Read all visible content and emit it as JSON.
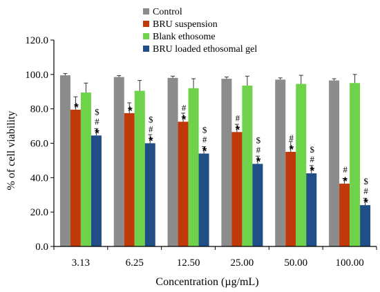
{
  "chart_data": {
    "type": "bar",
    "title": "",
    "xlabel": "Concentration (µg/mL)",
    "ylabel": "% of cell viability",
    "ylim": [
      0,
      120
    ],
    "yticks": [
      "0.0",
      "20.0",
      "40.0",
      "60.0",
      "80.0",
      "100.0",
      "120.0"
    ],
    "categories": [
      "3.13",
      "6.25",
      "12.50",
      "25.00",
      "50.00",
      "100.00"
    ],
    "grid": false,
    "legend_position": "top",
    "series": [
      {
        "name": "Control",
        "color": "#8c8c8c",
        "values": [
          99.5,
          98.5,
          98.0,
          97.5,
          97.0,
          96.5
        ],
        "errors": [
          1.0,
          0.8,
          1.0,
          1.0,
          1.0,
          1.0
        ],
        "markers": [
          "",
          "",
          "",
          "",
          "",
          ""
        ]
      },
      {
        "name": "BRU suspension",
        "color": "#c0390b",
        "values": [
          79.5,
          77.5,
          72.5,
          66.5,
          55.0,
          36.5
        ],
        "errors": [
          7.5,
          6.0,
          5.0,
          4.5,
          6.0,
          3.0
        ],
        "markers": [
          "*",
          "*",
          "#*",
          "#*",
          "#*",
          "#*"
        ]
      },
      {
        "name": "Blank ethosome",
        "color": "#6ed24a",
        "values": [
          89.5,
          90.5,
          92.0,
          93.5,
          94.5,
          95.0
        ],
        "errors": [
          5.5,
          6.0,
          5.5,
          5.5,
          5.0,
          5.0
        ],
        "markers": [
          "",
          "",
          "",
          "",
          "",
          ""
        ]
      },
      {
        "name": "BRU loaded ethosomal gel",
        "color": "#1f4f86",
        "values": [
          64.5,
          60.0,
          54.0,
          48.0,
          42.5,
          24.0
        ],
        "errors": [
          4.0,
          5.0,
          4.0,
          4.5,
          4.5,
          4.0
        ],
        "markers": [
          "$#*",
          "$#*",
          "$#*",
          "$#*",
          "$#*",
          "$#*"
        ]
      }
    ]
  }
}
